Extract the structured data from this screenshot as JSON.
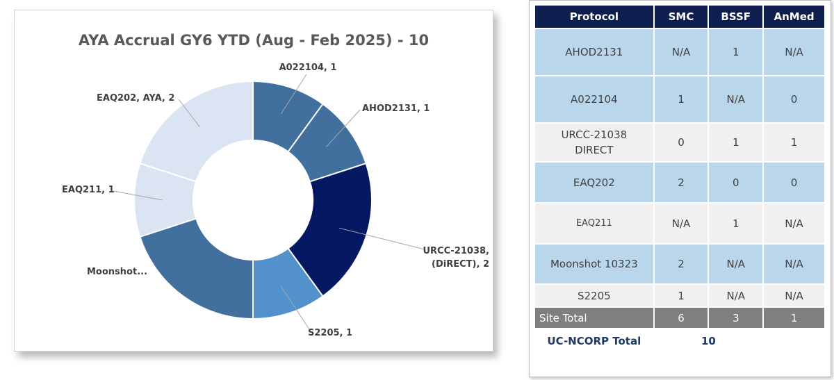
{
  "chart_data": {
    "type": "pie",
    "title": "AYA Accrual GY6 YTD (Aug - Feb 2025) - 10",
    "slices": [
      {
        "name": "A022104",
        "value": 1,
        "label": "A022104, 1",
        "color": "#41709e"
      },
      {
        "name": "AHOD2131",
        "value": 1,
        "label": "AHOD2131, 1",
        "color": "#41709e"
      },
      {
        "name": "URCC-21038 (DIRECT)",
        "value": 2,
        "label": [
          "URCC-21038,",
          "(DiRECT), 2"
        ],
        "color": "#051962"
      },
      {
        "name": "S2205",
        "value": 1,
        "label": "S2205, 1",
        "color": "#5391cc"
      },
      {
        "name": "Moonshot",
        "value": 2,
        "label": "Moonshot...",
        "color": "#41709e"
      },
      {
        "name": "EAQ211",
        "value": 1,
        "label": "EAQ211, 1",
        "color": "#dbe4f2"
      },
      {
        "name": "EAQ202, AYA",
        "value": 2,
        "label": "EAQ202, AYA, 2",
        "color": "#dbe4f2"
      }
    ]
  },
  "table": {
    "headers": [
      "Protocol",
      "SMC",
      "BSSF",
      "AnMed"
    ],
    "rows": [
      {
        "protocol": "AHOD2131",
        "smc": "N/A",
        "bssf": "1",
        "anmed": "N/A",
        "style": "blue"
      },
      {
        "protocol": "A022104",
        "smc": "1",
        "bssf": "N/A",
        "anmed": "0",
        "style": "blue"
      },
      {
        "protocol": "URCC-21038 DIRECT",
        "smc": "0",
        "bssf": "1",
        "anmed": "1",
        "style": "grey"
      },
      {
        "protocol": "EAQ202",
        "smc": "2",
        "bssf": "0",
        "anmed": "0",
        "style": "blue"
      },
      {
        "protocol": "EAQ211",
        "smc": "N/A",
        "bssf": "1",
        "anmed": "N/A",
        "style": "grey"
      },
      {
        "protocol": "Moonshot 10323",
        "smc": "2",
        "bssf": "N/A",
        "anmed": "N/A",
        "style": "blue"
      },
      {
        "protocol": "S2205",
        "smc": "1",
        "bssf": "N/A",
        "anmed": "N/A",
        "style": "grey"
      }
    ],
    "site_total": {
      "label": "Site Total",
      "smc": "6",
      "bssf": "3",
      "anmed": "1"
    },
    "uc_ncorp_total": {
      "label": "UC-NCORP Total",
      "value": "10"
    }
  }
}
